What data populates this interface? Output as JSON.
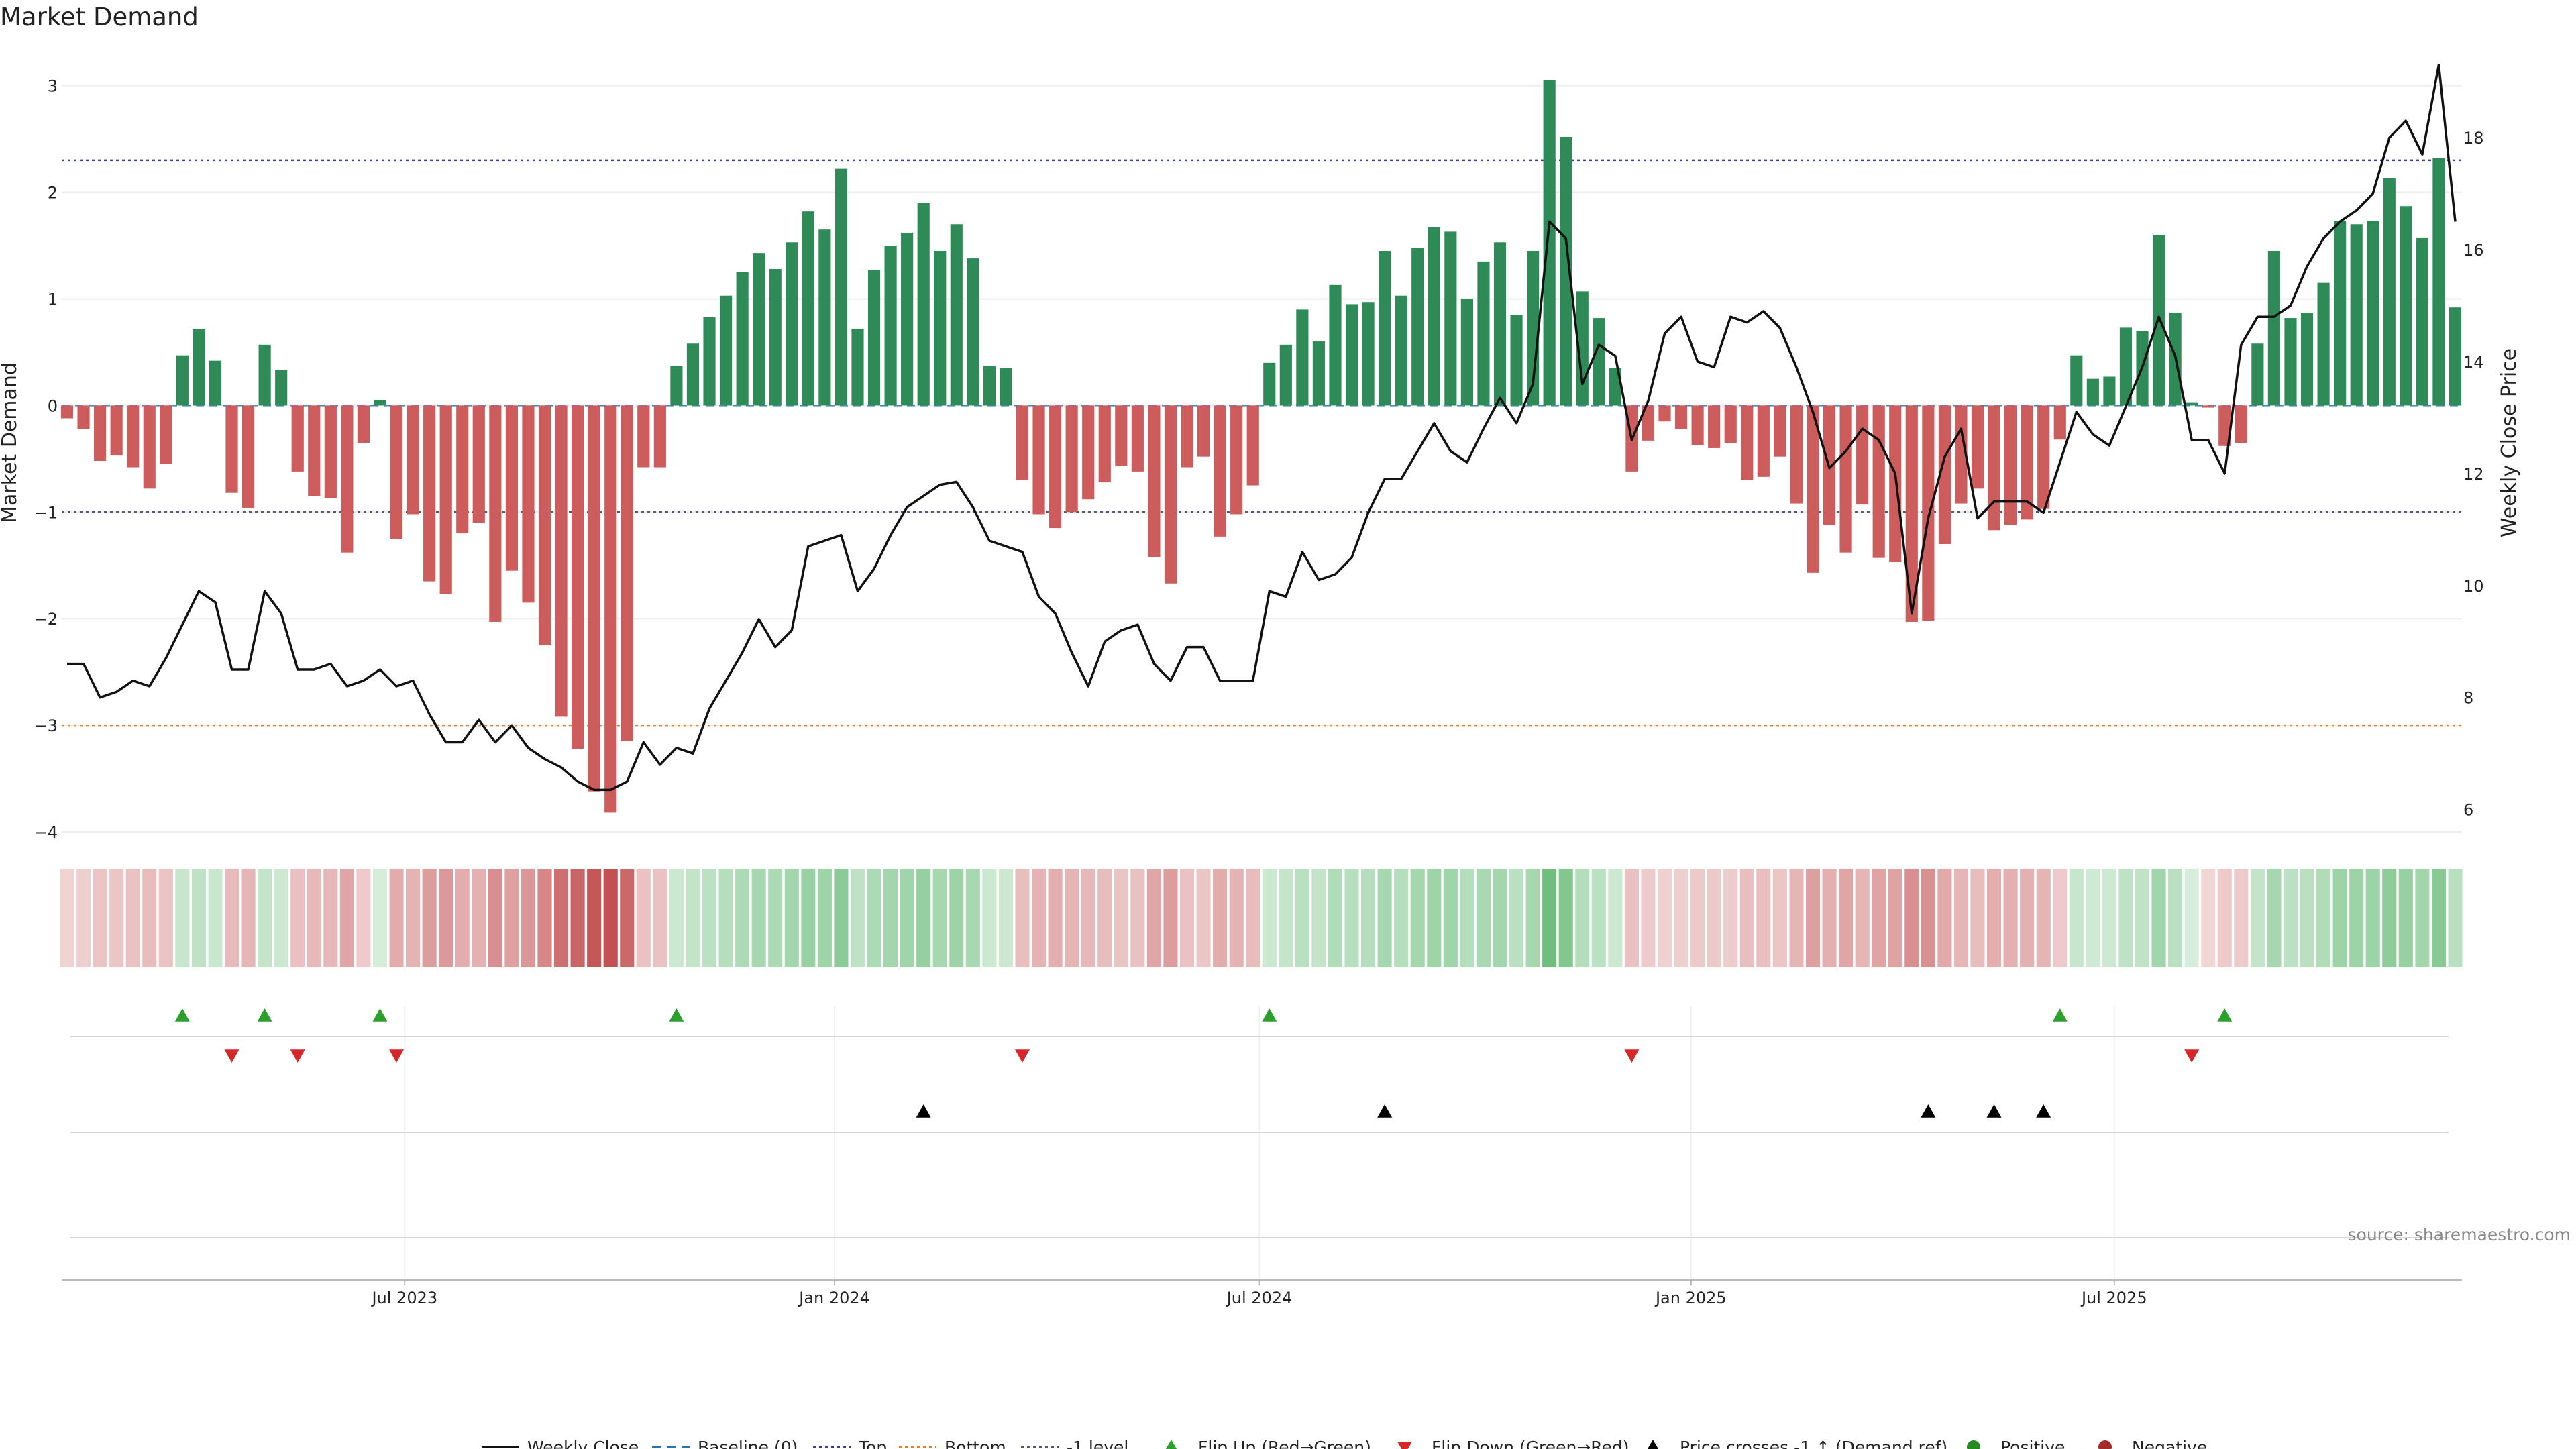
{
  "chart_data": {
    "type": "bar",
    "title": "Market Demand",
    "ylabel": "Market Demand",
    "y2label": "Weekly Close Price",
    "ylim": [
      -4,
      3.3
    ],
    "y2lim": [
      5.6,
      19.5
    ],
    "yticks": [
      3,
      2,
      1,
      0,
      -1,
      -2,
      -3,
      -4
    ],
    "yticklabels": [
      "3",
      "2",
      "1",
      "0",
      "−1",
      "−2",
      "−3",
      "−4"
    ],
    "y2ticks": [
      18,
      16,
      14,
      12,
      10,
      8,
      6
    ],
    "xticks": [
      {
        "index": 20.5,
        "label": "Jul 2023"
      },
      {
        "index": 46.6,
        "label": "Jan 2024"
      },
      {
        "index": 72.4,
        "label": "Jul 2024"
      },
      {
        "index": 98.6,
        "label": "Jan 2025"
      },
      {
        "index": 124.3,
        "label": "Jul 2025"
      }
    ],
    "reference_lines": {
      "baseline": 0,
      "top": 2.3,
      "bottom": -3.0,
      "minus_one_level": -1
    },
    "demand": [
      -0.12,
      -0.22,
      -0.52,
      -0.47,
      -0.58,
      -0.78,
      -0.55,
      0.47,
      0.72,
      0.42,
      -0.82,
      -0.96,
      0.57,
      0.33,
      -0.62,
      -0.85,
      -0.87,
      -1.38,
      -0.35,
      0.05,
      -1.25,
      -1.02,
      -1.65,
      -1.77,
      -1.2,
      -1.1,
      -2.03,
      -1.55,
      -1.85,
      -2.25,
      -2.92,
      -3.22,
      -3.62,
      -3.82,
      -3.15,
      -0.58,
      -0.58,
      0.37,
      0.58,
      0.83,
      1.03,
      1.25,
      1.43,
      1.28,
      1.53,
      1.82,
      1.65,
      2.22,
      0.72,
      1.27,
      1.5,
      1.62,
      1.9,
      1.45,
      1.7,
      1.38,
      0.37,
      0.35,
      -0.7,
      -1.02,
      -1.15,
      -1.0,
      -0.88,
      -0.72,
      -0.57,
      -0.62,
      -1.42,
      -1.67,
      -0.58,
      -0.48,
      -1.23,
      -1.02,
      -0.75,
      0.4,
      0.57,
      0.9,
      0.6,
      1.13,
      0.95,
      0.97,
      1.45,
      1.03,
      1.48,
      1.67,
      1.63,
      1.0,
      1.35,
      1.53,
      0.85,
      1.45,
      3.05,
      2.52,
      1.07,
      0.82,
      0.35,
      -0.62,
      -0.33,
      -0.15,
      -0.22,
      -0.37,
      -0.4,
      -0.35,
      -0.7,
      -0.67,
      -0.48,
      -0.92,
      -1.57,
      -1.12,
      -1.38,
      -0.93,
      -1.43,
      -1.47,
      -2.03,
      -2.02,
      -1.3,
      -0.92,
      -0.78,
      -1.17,
      -1.12,
      -1.07,
      -0.97,
      -0.32,
      0.47,
      0.25,
      0.27,
      0.73,
      0.7,
      1.6,
      0.87,
      0.03,
      -0.02,
      -0.38,
      -0.35,
      0.58,
      1.45,
      0.82,
      0.87,
      1.15,
      1.73,
      1.7,
      1.73,
      2.13,
      1.87,
      1.57,
      2.32,
      0.92
    ],
    "weekly_close": [
      8.6,
      8.6,
      8.0,
      8.1,
      8.3,
      8.2,
      8.7,
      9.3,
      9.9,
      9.7,
      8.5,
      8.5,
      9.9,
      9.5,
      8.5,
      8.5,
      8.6,
      8.2,
      8.3,
      8.5,
      8.2,
      8.3,
      7.7,
      7.2,
      7.2,
      7.6,
      7.2,
      7.5,
      7.1,
      6.9,
      6.75,
      6.5,
      6.35,
      6.35,
      6.5,
      7.2,
      6.8,
      7.1,
      7.0,
      7.8,
      8.3,
      8.8,
      9.4,
      8.9,
      9.2,
      10.7,
      10.8,
      10.9,
      9.9,
      10.3,
      10.9,
      11.4,
      11.6,
      11.8,
      11.85,
      11.4,
      10.8,
      10.7,
      10.6,
      9.8,
      9.5,
      8.8,
      8.2,
      9.0,
      9.2,
      9.3,
      8.6,
      8.3,
      8.9,
      8.9,
      8.3,
      8.3,
      8.3,
      9.9,
      9.8,
      10.6,
      10.1,
      10.2,
      10.5,
      11.3,
      11.9,
      11.9,
      12.4,
      12.9,
      12.4,
      12.2,
      12.8,
      13.35,
      12.9,
      13.6,
      16.5,
      16.2,
      13.6,
      14.3,
      14.1,
      12.6,
      13.3,
      14.5,
      14.8,
      14.0,
      13.9,
      14.8,
      14.7,
      14.9,
      14.6,
      13.9,
      13.1,
      12.1,
      12.4,
      12.8,
      12.6,
      12.0,
      9.5,
      11.2,
      12.3,
      12.8,
      11.2,
      11.5,
      11.5,
      11.5,
      11.3,
      12.2,
      13.1,
      12.7,
      12.5,
      13.2,
      13.9,
      14.8,
      14.1,
      12.6,
      12.6,
      12.0,
      14.3,
      14.8,
      14.8,
      15.0,
      15.7,
      16.2,
      16.5,
      16.7,
      17.0,
      18.0,
      18.3,
      17.7,
      19.3,
      16.5
    ],
    "flip_up": [
      7,
      12,
      19,
      37,
      73,
      121,
      131
    ],
    "flip_down": [
      10,
      14,
      20,
      58,
      95,
      129
    ],
    "price_cross": [
      52,
      80,
      113,
      117,
      120
    ],
    "legend": [
      {
        "label": "Weekly Close",
        "kind": "line",
        "color": "#111111"
      },
      {
        "label": "Baseline (0)",
        "kind": "dash",
        "color": "#1f77b4"
      },
      {
        "label": "Top",
        "kind": "dot",
        "color": "#3b3fa0"
      },
      {
        "label": "Bottom",
        "kind": "dot",
        "color": "#f07f1d"
      },
      {
        "label": "-1 level",
        "kind": "dot",
        "color": "#555577"
      },
      {
        "label": "Flip Up (Red→Green)",
        "kind": "tri-up",
        "color": "#2ca02c"
      },
      {
        "label": "Flip Down (Green→Red)",
        "kind": "tri-down",
        "color": "#d62728"
      },
      {
        "label": "Price crosses -1 ↑ (Demand ref)",
        "kind": "tri-up",
        "color": "#000000"
      },
      {
        "label": "Positive",
        "kind": "circle",
        "color": "#228b22"
      },
      {
        "label": "Negative",
        "kind": "circle",
        "color": "#a52a2a"
      }
    ],
    "colors": {
      "positive": "#2e8b57",
      "negative": "#cd5c5c",
      "close": "#111111",
      "top": "#3b3fa0",
      "bottom": "#f07f1d",
      "minus_one": "#555577",
      "baseline": "#1f77b4",
      "flip_up": "#2ca02c",
      "flip_down": "#d62728",
      "cross": "#000000"
    },
    "source": "source: sharemaestro.com"
  }
}
